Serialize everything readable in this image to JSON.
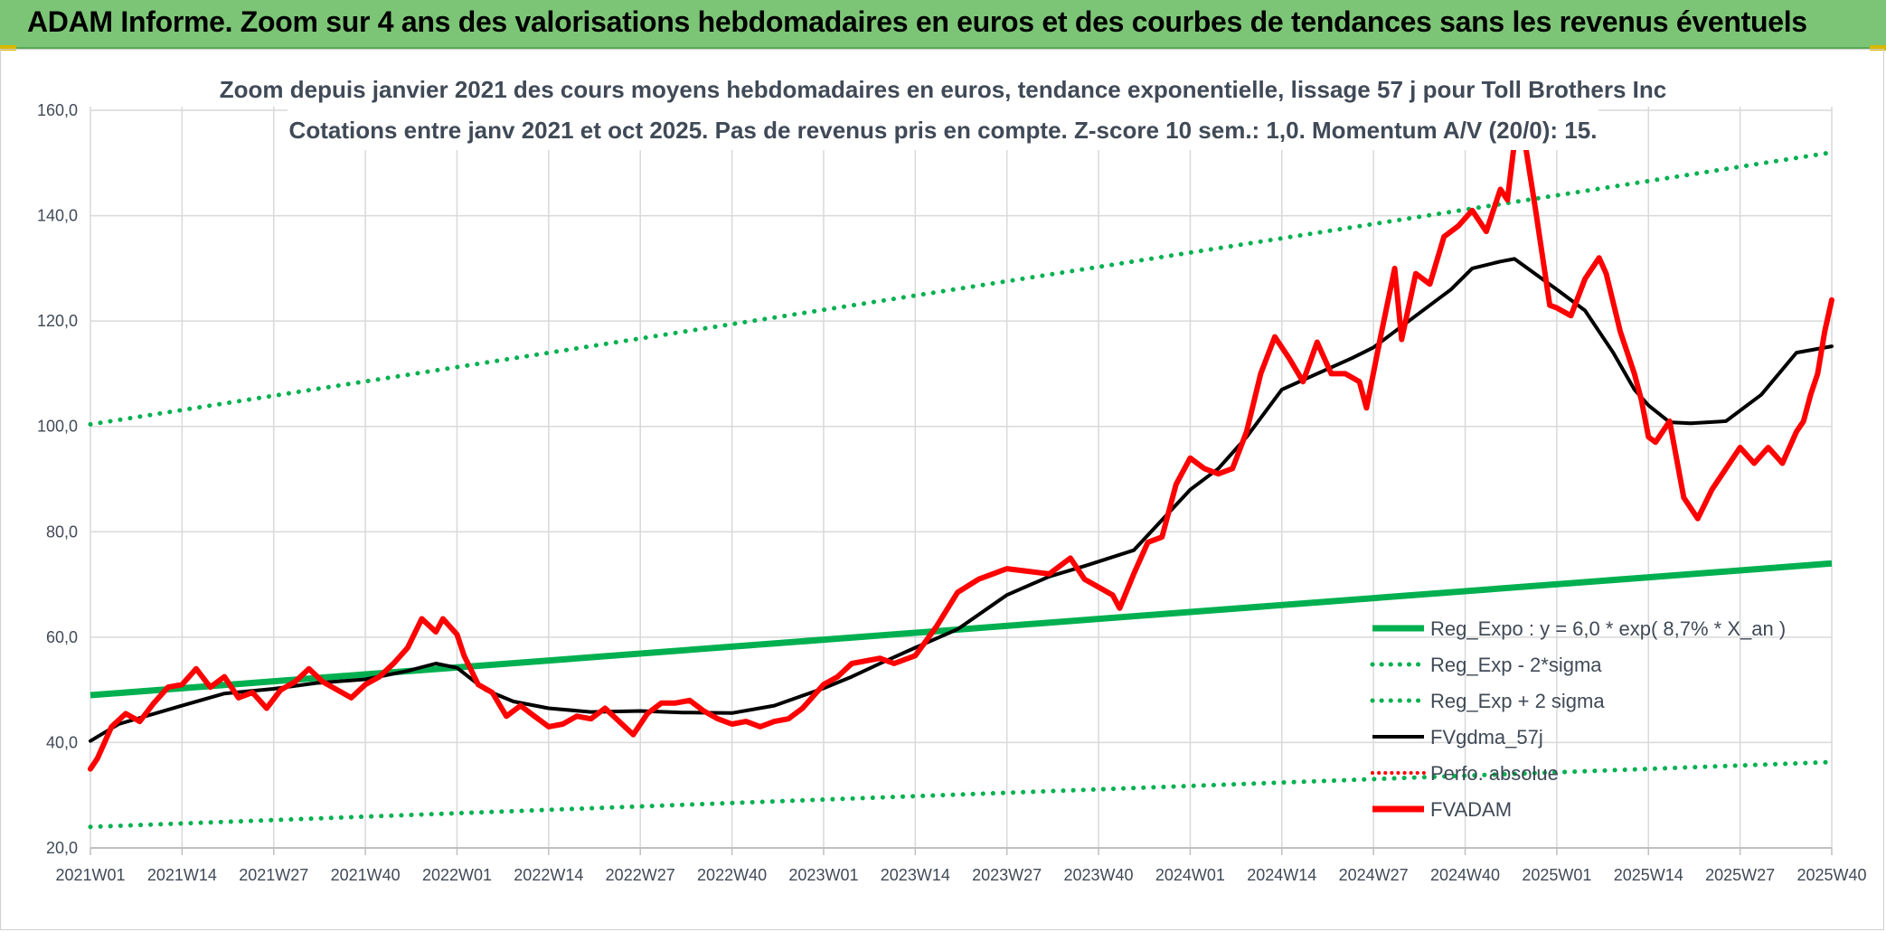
{
  "banner": {
    "title": "ADAM Informe. Zoom sur 4 ans des valorisations hebdomadaires en euros et des courbes de tendances sans les revenus éventuels"
  },
  "colors": {
    "banner_bg": "#7cc576",
    "regression": "#00b050",
    "fv_adam": "#ff0000",
    "fv_gdma": "#000000",
    "perfo": "#ff0000",
    "axis_text": "#404a57"
  },
  "chart_data": {
    "type": "line",
    "subtitle_line1": "Zoom depuis janvier 2021 des cours moyens hebdomadaires en euros, tendance exponentielle, lissage 57 j pour Toll Brothers Inc",
    "subtitle_line2": "Cotations entre janv 2021 et oct 2025. Pas de revenus pris en compte. Z-score 10 sem.: 1,0. Momentum A/V (20/0): 15.",
    "ylim": [
      20,
      160
    ],
    "y_ticks": [
      "20,0",
      "40,0",
      "60,0",
      "80,0",
      "100,0",
      "120,0",
      "140,0",
      "160,0"
    ],
    "x_tick_labels": [
      "2021W01",
      "2021W14",
      "2021W27",
      "2021W40",
      "2022W01",
      "2022W14",
      "2022W27",
      "2022W40",
      "2023W01",
      "2023W14",
      "2023W27",
      "2023W40",
      "2024W01",
      "2024W14",
      "2024W27",
      "2024W40",
      "2025W01",
      "2025W14",
      "2025W27",
      "2025W40"
    ],
    "grid": true,
    "legend_position": "bottom-right",
    "legend": [
      {
        "label": "Reg_Expo : y = 6,0 * exp( 8,7% *  X_an )",
        "style": "solid-green-thick"
      },
      {
        "label": "Reg_Exp - 2*sigma",
        "style": "dotted-green"
      },
      {
        "label": "Reg_Exp + 2 sigma",
        "style": "dotted-green"
      },
      {
        "label": "FVgdma_57j",
        "style": "solid-black"
      },
      {
        "label": "Perfo. absolue",
        "style": "dotted-red"
      },
      {
        "label": "FVADAM",
        "style": "solid-red-thick"
      }
    ],
    "series": [
      {
        "name": "Reg_Expo : y = 6,0 * exp( 8,7% *  X_an )",
        "x": [
          "2021W01",
          "2025W40"
        ],
        "values": [
          49.0,
          74.0
        ]
      },
      {
        "name": "Reg_Exp - 2*sigma",
        "x": [
          "2021W01",
          "2025W40"
        ],
        "values": [
          24.0,
          36.3
        ]
      },
      {
        "name": "Reg_Exp + 2 sigma",
        "x": [
          "2021W01",
          "2025W40"
        ],
        "values": [
          100.4,
          152.0
        ]
      },
      {
        "name": "FVgdma_57j",
        "x": [
          "2021W01",
          "2021W05",
          "2021W14",
          "2021W20",
          "2021W27",
          "2021W33",
          "2021W40",
          "2021W46",
          "2021W50",
          "2022W01",
          "2022W05",
          "2022W09",
          "2022W14",
          "2022W20",
          "2022W27",
          "2022W33",
          "2022W40",
          "2022W46",
          "2023W01",
          "2023W05",
          "2023W09",
          "2023W14",
          "2023W20",
          "2023W27",
          "2023W33",
          "2023W38",
          "2023W45",
          "2024W01",
          "2024W05",
          "2024W09",
          "2024W14",
          "2024W19",
          "2024W24",
          "2024W27",
          "2024W33",
          "2024W38",
          "2024W41",
          "2024W45",
          "2024W47",
          "2025W01",
          "2025W05",
          "2025W09",
          "2025W12",
          "2025W14",
          "2025W17",
          "2025W20",
          "2025W25",
          "2025W30",
          "2025W35",
          "2025W40"
        ],
        "values": [
          40.3,
          43.5,
          47.0,
          49.3,
          50.2,
          51.3,
          52.0,
          53.6,
          55.0,
          54.2,
          50.0,
          47.8,
          46.5,
          45.8,
          46.0,
          45.7,
          45.6,
          47.0,
          50.3,
          52.5,
          55.0,
          58.0,
          61.5,
          68.0,
          71.5,
          73.5,
          76.5,
          88.0,
          92.0,
          98.0,
          107.0,
          110.0,
          113.0,
          115.0,
          121.0,
          126.0,
          130.0,
          131.3,
          131.8,
          126.0,
          122.0,
          114.0,
          107.0,
          104.0,
          100.8,
          100.6,
          101.0,
          106.0,
          114.0,
          115.2
        ]
      },
      {
        "name": "FVADAM",
        "x": [
          "2021W01",
          "2021W02",
          "2021W04",
          "2021W06",
          "2021W08",
          "2021W10",
          "2021W12",
          "2021W14",
          "2021W16",
          "2021W18",
          "2021W20",
          "2021W22",
          "2021W24",
          "2021W26",
          "2021W28",
          "2021W30",
          "2021W32",
          "2021W34",
          "2021W36",
          "2021W38",
          "2021W40",
          "2021W42",
          "2021W44",
          "2021W46",
          "2021W48",
          "2021W50",
          "2021W51",
          "2022W01",
          "2022W02",
          "2022W04",
          "2022W06",
          "2022W08",
          "2022W10",
          "2022W12",
          "2022W14",
          "2022W16",
          "2022W18",
          "2022W20",
          "2022W22",
          "2022W24",
          "2022W26",
          "2022W28",
          "2022W30",
          "2022W32",
          "2022W34",
          "2022W36",
          "2022W38",
          "2022W40",
          "2022W42",
          "2022W44",
          "2022W46",
          "2022W48",
          "2022W50",
          "2023W01",
          "2023W03",
          "2023W05",
          "2023W07",
          "2023W09",
          "2023W11",
          "2023W14",
          "2023W17",
          "2023W20",
          "2023W23",
          "2023W27",
          "2023W30",
          "2023W33",
          "2023W36",
          "2023W38",
          "2023W40",
          "2023W42",
          "2023W43",
          "2023W45",
          "2023W47",
          "2023W49",
          "2023W51",
          "2024W01",
          "2024W03",
          "2024W05",
          "2024W07",
          "2024W09",
          "2024W11",
          "2024W13",
          "2024W15",
          "2024W17",
          "2024W19",
          "2024W21",
          "2024W23",
          "2024W25",
          "2024W26",
          "2024W28",
          "2024W30",
          "2024W31",
          "2024W33",
          "2024W35",
          "2024W37",
          "2024W39",
          "2024W41",
          "2024W43",
          "2024W45",
          "2024W46",
          "2024W47",
          "2024W48",
          "2024W50",
          "2024W52",
          "2025W01",
          "2025W03",
          "2025W05",
          "2025W07",
          "2025W08",
          "2025W10",
          "2025W12",
          "2025W13",
          "2025W14",
          "2025W15",
          "2025W17",
          "2025W19",
          "2025W21",
          "2025W23",
          "2025W25",
          "2025W27",
          "2025W29",
          "2025W31",
          "2025W33",
          "2025W35",
          "2025W36",
          "2025W37",
          "2025W38",
          "2025W39",
          "2025W40"
        ],
        "values": [
          35.0,
          37.0,
          43.0,
          45.5,
          44.0,
          47.5,
          50.5,
          51.0,
          54.0,
          50.5,
          52.5,
          48.5,
          49.5,
          46.5,
          50.0,
          51.5,
          54.0,
          51.5,
          50.0,
          48.5,
          51.0,
          52.5,
          55.0,
          58.0,
          63.5,
          61.0,
          63.5,
          60.5,
          56.5,
          51.0,
          49.5,
          45.0,
          47.0,
          45.0,
          43.0,
          43.5,
          45.0,
          44.5,
          46.5,
          44.0,
          41.5,
          45.5,
          47.5,
          47.5,
          48.0,
          46.0,
          44.5,
          43.5,
          44.0,
          43.0,
          44.0,
          44.5,
          46.5,
          51.0,
          52.5,
          55.0,
          55.5,
          56.0,
          55.0,
          56.5,
          62.0,
          68.5,
          71.0,
          73.0,
          72.5,
          72.0,
          75.0,
          71.0,
          69.5,
          68.0,
          65.5,
          72.0,
          78.0,
          79.0,
          89.0,
          94.0,
          92.0,
          91.0,
          92.0,
          99.0,
          110.0,
          117.0,
          113.0,
          108.5,
          116.0,
          110.0,
          110.0,
          108.5,
          103.5,
          117.0,
          130.0,
          116.5,
          129.0,
          127.0,
          136.0,
          138.0,
          141.0,
          137.0,
          145.0,
          143.0,
          154.0,
          158.0,
          141.0,
          123.0,
          122.5,
          121.0,
          128.0,
          132.0,
          129.0,
          118.0,
          110.0,
          105.0,
          98.0,
          97.0,
          101.0,
          86.5,
          82.5,
          88.0,
          92.0,
          96.0,
          93.0,
          96.0,
          93.0,
          99.0,
          101.0,
          106.0,
          110.0,
          118.0,
          124.0
        ]
      }
    ]
  }
}
